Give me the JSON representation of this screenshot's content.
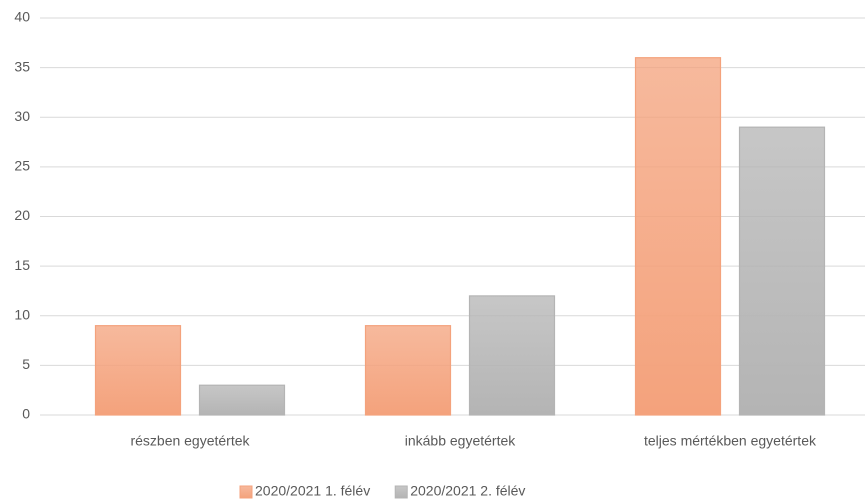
{
  "chart_data": {
    "type": "bar",
    "categories": [
      "részben egyetértek",
      "inkább egyetértek",
      "teljes mértékben egyetértek"
    ],
    "series": [
      {
        "name": "2020/2021 1. félév",
        "color": "#f4a27c",
        "values": [
          9,
          9,
          36
        ]
      },
      {
        "name": "2020/2021 2. félév",
        "color": "#b4b4b4",
        "values": [
          3,
          12,
          29
        ]
      }
    ],
    "ylim": [
      0,
      40
    ],
    "yticks": [
      0,
      5,
      10,
      15,
      20,
      25,
      30,
      35,
      40
    ],
    "grid": true,
    "legend": "bottom"
  }
}
